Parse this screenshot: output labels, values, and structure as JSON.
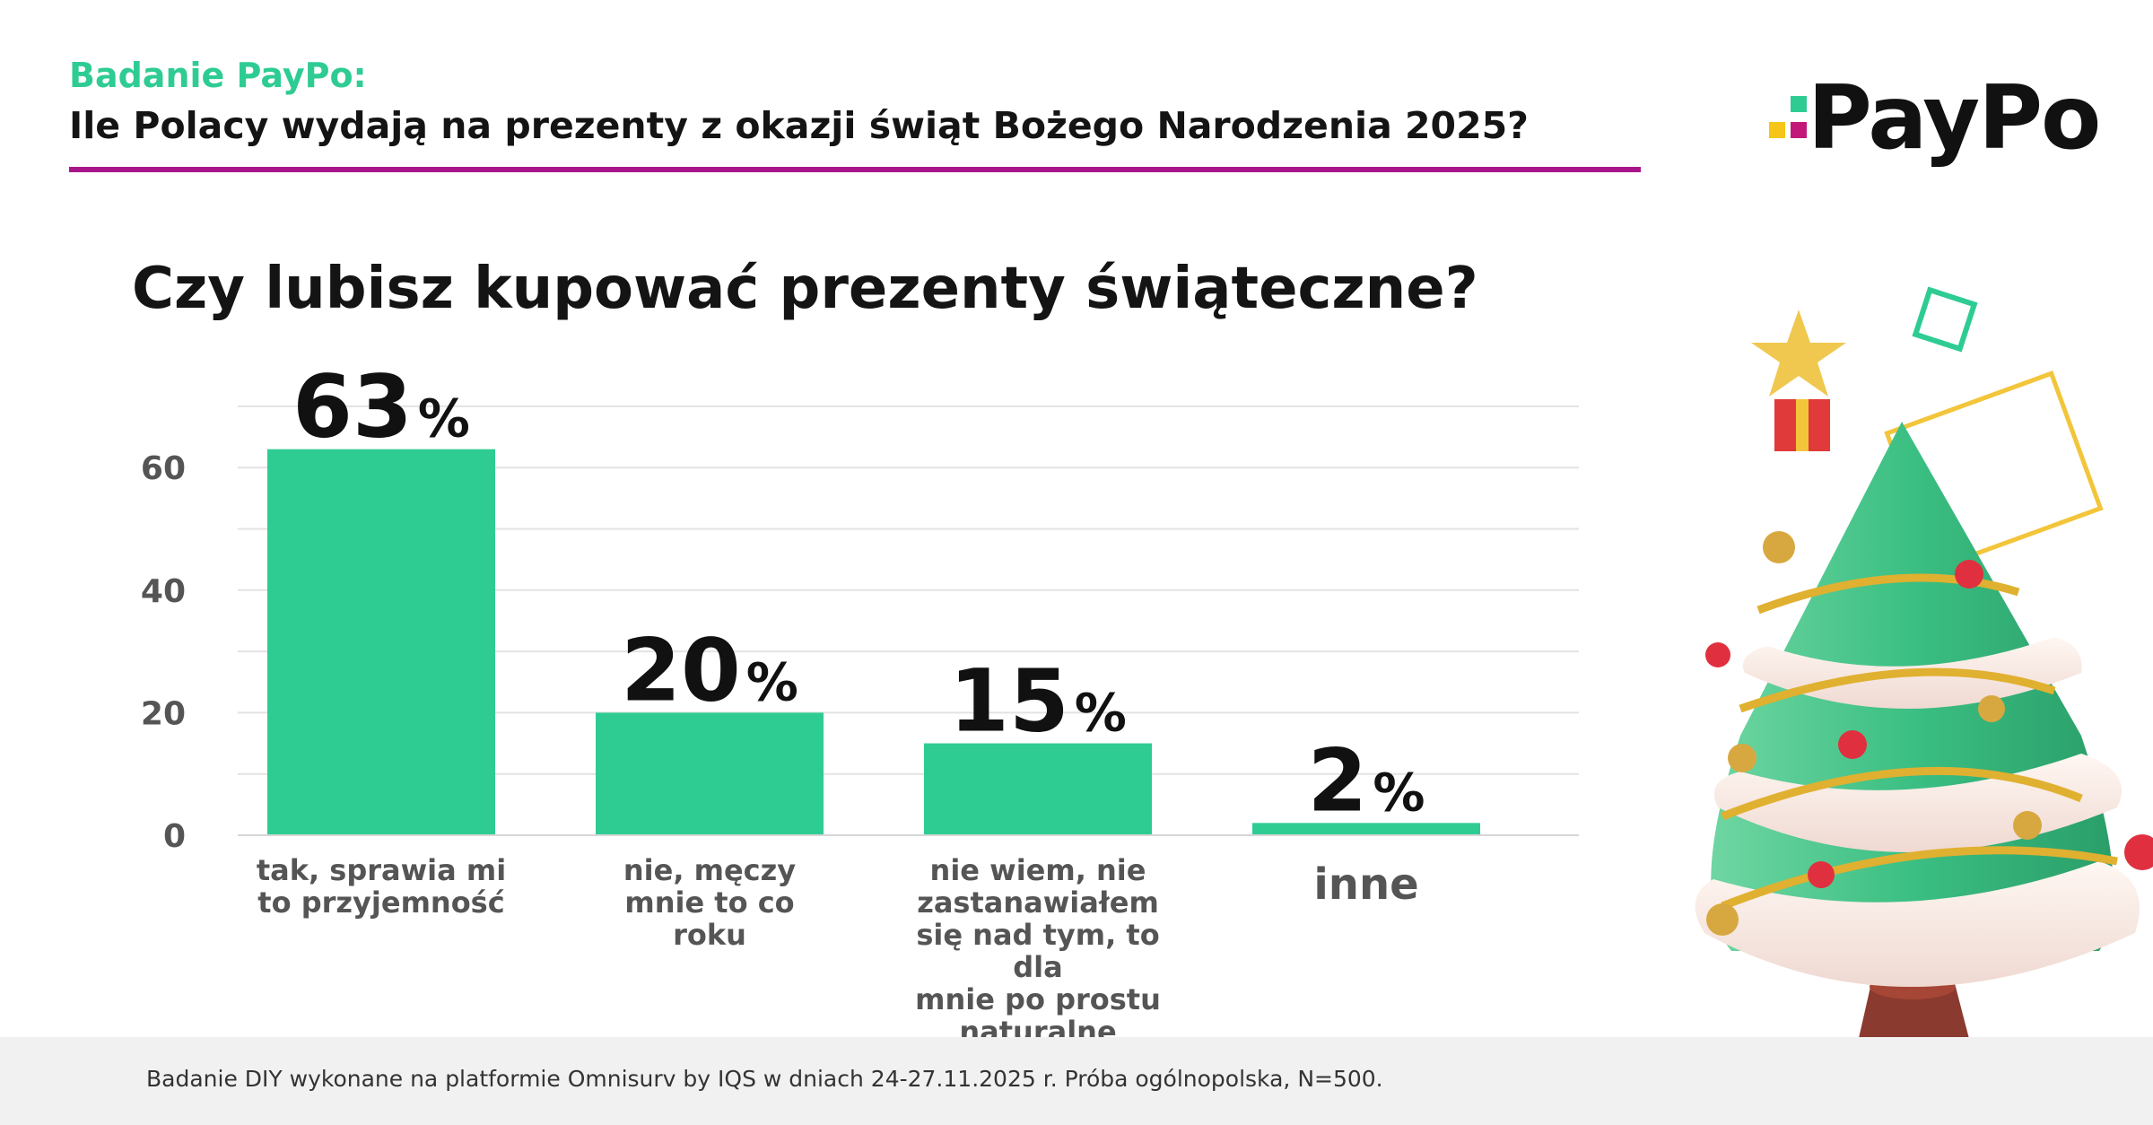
{
  "header": {
    "kicker": "Badanie PayPo:",
    "title": "Ile Polacy wydają na prezenty z okazji świąt Bożego Narodzenia 2025?"
  },
  "logo": {
    "text": "PayPo",
    "squares": [
      "#2ecc93",
      "#f5c518",
      "#c2187a"
    ]
  },
  "colors": {
    "accent": "#2ecc93",
    "rule": "#a8168a",
    "bar": "#2ecc93"
  },
  "chart_data": {
    "type": "bar",
    "title": "Czy lubisz kupować prezenty świąteczne?",
    "categories": [
      [
        "tak, sprawia mi",
        "to przyjemność"
      ],
      [
        "nie, męczy",
        "mnie to co",
        "roku"
      ],
      [
        "nie wiem, nie",
        "zastanawiałem",
        "się nad tym, to dla",
        "mnie po prostu",
        "naturalne"
      ],
      [
        "inne"
      ]
    ],
    "values": [
      63,
      20,
      15,
      2
    ],
    "value_labels": [
      "63",
      "20",
      "15",
      "2"
    ],
    "value_suffix": "%",
    "yticks": [
      0,
      20,
      40,
      60
    ],
    "ylim": [
      0,
      70
    ],
    "grid": true
  },
  "footnote": "Badanie DIY wykonane na platformie Omnisurv by IQS w dniach 24-27.11.2025 r.  Próba ogólnopolska, N=500."
}
